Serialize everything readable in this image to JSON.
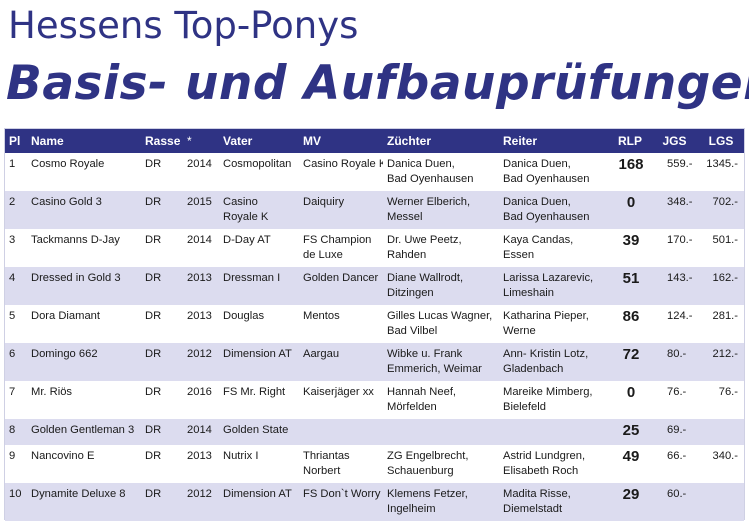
{
  "heading": {
    "line1": "Hessens Top-Ponys",
    "line2": "Basis- und Aufbauprüfungen"
  },
  "colors": {
    "brand": "#2f3384",
    "row_alt": "#dcdcef",
    "header_text": "#ffffff"
  },
  "table": {
    "headers": [
      "Pl",
      "Name",
      "Rasse",
      "*",
      "Vater",
      "MV",
      "Züchter",
      "Reiter",
      "RLP",
      "JGS",
      "LGS"
    ],
    "rows": [
      {
        "pl": "1",
        "name": "Cosmo Royale",
        "rasse": "DR",
        "year": "2014",
        "vater": [
          "Cosmopolitan"
        ],
        "mv": [
          "Casino Royale K"
        ],
        "zuechter": [
          "Danica Duen,",
          "Bad Oyenhausen"
        ],
        "reiter": [
          "Danica Duen,",
          "Bad Oyenhausen"
        ],
        "rlp": "168",
        "jgs": "559.-",
        "lgs": "1345.-"
      },
      {
        "pl": "2",
        "name": "Casino Gold 3",
        "rasse": "DR",
        "year": "2015",
        "vater": [
          "Casino",
          "Royale K"
        ],
        "mv": [
          "Daiquiry"
        ],
        "zuechter": [
          "Werner Elberich,",
          "Messel"
        ],
        "reiter": [
          "Danica Duen,",
          "Bad Oyenhausen"
        ],
        "rlp": "0",
        "jgs": "348.-",
        "lgs": "702.-"
      },
      {
        "pl": "3",
        "name": "Tackmanns D-Jay",
        "rasse": "DR",
        "year": "2014",
        "vater": [
          "D-Day AT"
        ],
        "mv": [
          "FS Champion",
          "de Luxe"
        ],
        "zuechter": [
          "Dr. Uwe Peetz,",
          "Rahden"
        ],
        "reiter": [
          "Kaya Candas,",
          "Essen"
        ],
        "rlp": "39",
        "jgs": "170.-",
        "lgs": "501.-"
      },
      {
        "pl": "4",
        "name": "Dressed in Gold 3",
        "rasse": "DR",
        "year": "2013",
        "vater": [
          "Dressman I"
        ],
        "mv": [
          "Golden Dancer"
        ],
        "zuechter": [
          "Diane Wallrodt,",
          "Ditzingen"
        ],
        "reiter": [
          "Larissa Lazarevic,",
          "Limeshain"
        ],
        "rlp": "51",
        "jgs": "143.-",
        "lgs": "162.-"
      },
      {
        "pl": "5",
        "name": "Dora Diamant",
        "rasse": "DR",
        "year": "2013",
        "vater": [
          "Douglas"
        ],
        "mv": [
          "Mentos"
        ],
        "zuechter": [
          "Gilles Lucas Wagner,",
          "Bad Vilbel"
        ],
        "reiter": [
          "Katharina Pieper,",
          "Werne"
        ],
        "rlp": "86",
        "jgs": "124.-",
        "lgs": "281.-"
      },
      {
        "pl": "6",
        "name": "Domingo 662",
        "rasse": "DR",
        "year": "2012",
        "vater": [
          "Dimension AT"
        ],
        "mv": [
          "Aargau"
        ],
        "zuechter": [
          "Wibke u. Frank",
          "Emmerich, Weimar"
        ],
        "reiter": [
          "Ann- Kristin Lotz,",
          "Gladenbach"
        ],
        "rlp": "72",
        "jgs": "80.-",
        "lgs": "212.-"
      },
      {
        "pl": "7",
        "name": "Mr. Riös",
        "rasse": "DR",
        "year": "2016",
        "vater": [
          "FS Mr. Right"
        ],
        "mv": [
          "Kaiserjäger xx"
        ],
        "zuechter": [
          "Hannah Neef,",
          "Mörfelden"
        ],
        "reiter": [
          "Mareike Mimberg,",
          "Bielefeld"
        ],
        "rlp": "0",
        "jgs": "76.-",
        "lgs": "76.-"
      },
      {
        "pl": "8",
        "name": "Golden Gentleman 3",
        "rasse": "DR",
        "year": "2014",
        "vater": [
          "Golden State"
        ],
        "mv": [
          ""
        ],
        "zuechter": [
          ""
        ],
        "reiter": [
          ""
        ],
        "rlp": "25",
        "jgs": "69.-",
        "lgs": ""
      },
      {
        "pl": "9",
        "name": "Nancovino E",
        "rasse": "DR",
        "year": "2013",
        "vater": [
          "Nutrix I"
        ],
        "mv": [
          "Thriantas",
          "Norbert"
        ],
        "zuechter": [
          "ZG Engelbrecht,",
          "Schauenburg"
        ],
        "reiter": [
          "Astrid Lundgren,",
          "Elisabeth Roch"
        ],
        "rlp": "49",
        "jgs": "66.-",
        "lgs": "340.-"
      },
      {
        "pl": "10",
        "name": "Dynamite Deluxe 8",
        "rasse": "DR",
        "year": "2012",
        "vater": [
          "Dimension AT"
        ],
        "mv": [
          "FS Don`t Worry"
        ],
        "zuechter": [
          "Klemens Fetzer,",
          "Ingelheim"
        ],
        "reiter": [
          "Madita Risse,",
          "Diemelstadt"
        ],
        "rlp": "29",
        "jgs": "60.-",
        "lgs": ""
      }
    ]
  }
}
